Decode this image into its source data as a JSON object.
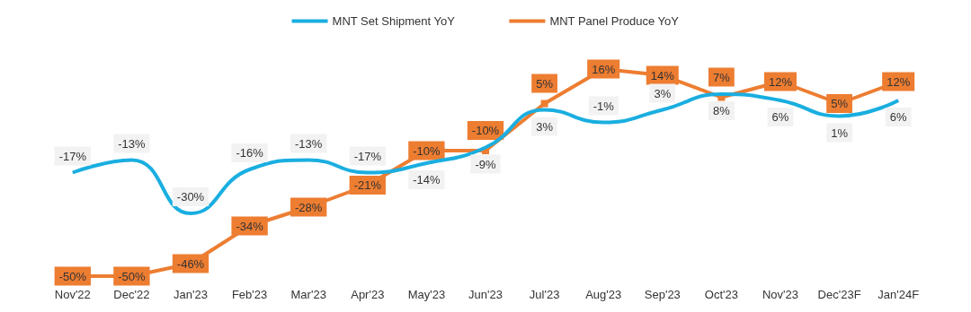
{
  "chart_data": {
    "type": "line",
    "categories": [
      "Nov'22",
      "Dec'22",
      "Jan'23",
      "Feb'23",
      "Mar'23",
      "Apr'23",
      "May'23",
      "Jun'23",
      "Jul'23",
      "Aug'23",
      "Sep'23",
      "Oct'23",
      "Nov'23",
      "Dec'23F",
      "Jan'24F"
    ],
    "series": [
      {
        "name": "MNT Set Shipment YoY",
        "color": "#1aaee0",
        "values": [
          -17,
          -13,
          -30,
          -16,
          -13,
          -17,
          -14,
          -9,
          3,
          -1,
          3,
          8,
          6,
          1,
          6
        ],
        "value_labels": [
          "-17%",
          "-13%",
          "-30%",
          "-16%",
          "-13%",
          "-17%",
          "-14%",
          "-9%",
          "3%",
          "-1%",
          "3%",
          "8%",
          "6%",
          "1%",
          "6%"
        ]
      },
      {
        "name": "MNT Panel Produce YoY",
        "color": "#ed7d31",
        "marker": "square",
        "values": [
          -50,
          -50,
          -46,
          -34,
          -28,
          -21,
          -10,
          -10,
          5,
          16,
          14,
          7,
          12,
          5,
          12
        ],
        "value_labels": [
          "-50%",
          "-50%",
          "-46%",
          "-34%",
          "-28%",
          "-21%",
          "-10%",
          "-10%",
          "5%",
          "16%",
          "14%",
          "7%",
          "12%",
          "5%",
          "12%"
        ]
      }
    ],
    "legend": "top"
  }
}
